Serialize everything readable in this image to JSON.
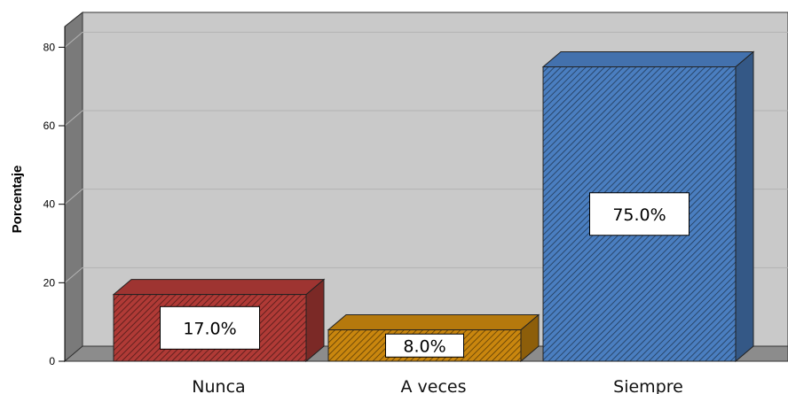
{
  "chart_data": {
    "type": "bar",
    "categories": [
      "Nunca",
      "A veces",
      "Siempre"
    ],
    "values": [
      17.0,
      8.0,
      75.0
    ],
    "data_labels": [
      "17.0%",
      "8.0%",
      "75.0%"
    ],
    "ylabel": "Porcentaje",
    "xlabel": "",
    "ylim": [
      0,
      85
    ],
    "yticks": [
      0,
      20,
      40,
      60,
      80
    ],
    "ytick_labels": [
      "0",
      "20",
      "40",
      "60",
      "80"
    ],
    "grid": true,
    "style": "3d-hatched",
    "colors": {
      "Nunca": "#b03a36",
      "A veces": "#c9860e",
      "Siempre": "#4a7ec0"
    },
    "plot_background": "#c9c9c9"
  }
}
